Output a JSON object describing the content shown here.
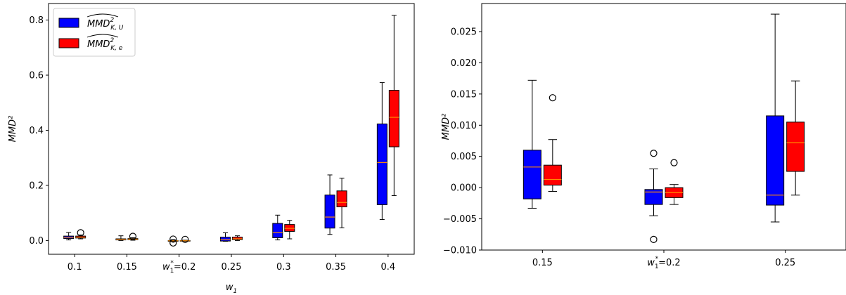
{
  "colors": {
    "series_u": "#0000ff",
    "series_e": "#ff0000",
    "median": "#ff8c00",
    "axis": "#000000"
  },
  "chart_data": [
    {
      "type": "boxplot",
      "xlabel": "w₁",
      "ylabel": "MMD²",
      "ylim": [
        -0.05,
        0.86
      ],
      "yticks": [
        "0.0",
        "0.2",
        "0.4",
        "0.6",
        "0.8"
      ],
      "yticks_values": [
        0.0,
        0.2,
        0.4,
        0.6,
        0.8
      ],
      "categories": [
        "0.1",
        "0.15",
        "w₁*=0.2",
        "0.25",
        "0.3",
        "0.35",
        "0.4"
      ],
      "legend": {
        "placement": "top-left",
        "entries": [
          "MMD² K,U (hat)",
          "MMD² K,e (hat)"
        ]
      },
      "series": [
        {
          "name": "MMD² K,U (hat)",
          "boxes": [
            {
              "whislo": 0.002,
              "q1": 0.007,
              "med": 0.011,
              "q3": 0.016,
              "whishi": 0.029,
              "fliers": []
            },
            {
              "whislo": 0.0,
              "q1": 0.002,
              "med": 0.004,
              "q3": 0.006,
              "whishi": 0.017,
              "fliers": []
            },
            {
              "whislo": -0.004,
              "q1": -0.003,
              "med": -0.001,
              "q3": 0.0,
              "whishi": 0.003,
              "fliers": [
                0.005,
                -0.009
              ]
            },
            {
              "whislo": -0.003,
              "q1": -0.002,
              "med": 0.003,
              "q3": 0.012,
              "whishi": 0.028,
              "fliers": []
            },
            {
              "whislo": 0.002,
              "q1": 0.01,
              "med": 0.028,
              "q3": 0.062,
              "whishi": 0.092,
              "fliers": []
            },
            {
              "whislo": 0.022,
              "q1": 0.045,
              "med": 0.085,
              "q3": 0.165,
              "whishi": 0.238,
              "fliers": []
            },
            {
              "whislo": 0.076,
              "q1": 0.13,
              "med": 0.283,
              "q3": 0.423,
              "whishi": 0.573,
              "fliers": []
            }
          ]
        },
        {
          "name": "MMD² K,e (hat)",
          "boxes": [
            {
              "whislo": 0.006,
              "q1": 0.009,
              "med": 0.012,
              "q3": 0.016,
              "whishi": 0.02,
              "fliers": [
                0.028
              ]
            },
            {
              "whislo": 0.001,
              "q1": 0.003,
              "med": 0.005,
              "q3": 0.007,
              "whishi": 0.01,
              "fliers": [
                0.015
              ]
            },
            {
              "whislo": -0.003,
              "q1": -0.002,
              "med": -0.001,
              "q3": 0.0,
              "whishi": 0.001,
              "fliers": [
                0.004
              ]
            },
            {
              "whislo": 0.0,
              "q1": 0.003,
              "med": 0.006,
              "q3": 0.012,
              "whishi": 0.017,
              "fliers": []
            },
            {
              "whislo": 0.006,
              "q1": 0.033,
              "med": 0.044,
              "q3": 0.058,
              "whishi": 0.073,
              "fliers": []
            },
            {
              "whislo": 0.046,
              "q1": 0.122,
              "med": 0.138,
              "q3": 0.18,
              "whishi": 0.226,
              "fliers": []
            },
            {
              "whislo": 0.163,
              "q1": 0.34,
              "med": 0.447,
              "q3": 0.545,
              "whishi": 0.817,
              "fliers": []
            }
          ]
        }
      ]
    },
    {
      "type": "boxplot",
      "xlabel": "",
      "ylabel": "MMD²",
      "ylim": [
        -0.01,
        0.0295
      ],
      "yticks": [
        "−0.010",
        "−0.005",
        "0.000",
        "0.005",
        "0.010",
        "0.015",
        "0.020",
        "0.025"
      ],
      "yticks_values": [
        -0.01,
        -0.005,
        0.0,
        0.005,
        0.01,
        0.015,
        0.02,
        0.025
      ],
      "categories": [
        "0.15",
        "w₁*=0.2",
        "0.25"
      ],
      "series": [
        {
          "name": "MMD² K,U (hat)",
          "boxes": [
            {
              "whislo": -0.0033,
              "q1": -0.0018,
              "med": 0.0033,
              "q3": 0.006,
              "whishi": 0.0172,
              "fliers": []
            },
            {
              "whislo": -0.0045,
              "q1": -0.0027,
              "med": -0.0007,
              "q3": -0.0003,
              "whishi": 0.003,
              "fliers": [
                0.0055,
                -0.0083
              ]
            },
            {
              "whislo": -0.0055,
              "q1": -0.0028,
              "med": -0.0012,
              "q3": 0.0115,
              "whishi": 0.0278,
              "fliers": []
            }
          ]
        },
        {
          "name": "MMD² K,e (hat)",
          "boxes": [
            {
              "whislo": -0.0006,
              "q1": 0.0004,
              "med": 0.0013,
              "q3": 0.0036,
              "whishi": 0.0077,
              "fliers": [
                0.0144
              ]
            },
            {
              "whislo": -0.0027,
              "q1": -0.0016,
              "med": -0.0008,
              "q3": 0.0,
              "whishi": 0.0005,
              "fliers": [
                0.004
              ]
            },
            {
              "whislo": -0.0012,
              "q1": 0.0026,
              "med": 0.0072,
              "q3": 0.0105,
              "whishi": 0.0171,
              "fliers": []
            }
          ]
        }
      ]
    }
  ]
}
